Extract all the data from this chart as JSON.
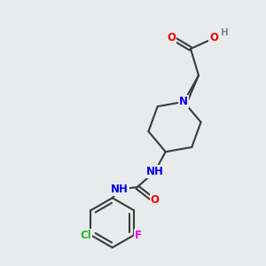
{
  "bg_color": "#e8eaec",
  "bond_color": "#3a3a3a",
  "bond_width": 1.5,
  "atom_colors": {
    "N": "#0000ee",
    "O": "#ee0000",
    "Cl": "#22bb22",
    "F": "#ee00ee",
    "H": "#888888",
    "C": "#3a3a3a"
  },
  "font_size": 8.5,
  "figsize": [
    3.0,
    3.0
  ],
  "dpi": 100
}
